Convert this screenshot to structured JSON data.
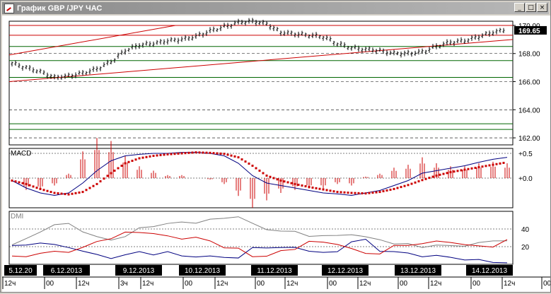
{
  "window": {
    "title": "График GBP /JPY ЧАС",
    "buttons": {
      "minimize": "_",
      "maximize": "□",
      "close": "×"
    }
  },
  "price_panel": {
    "y_ticks": [
      "170.00",
      "168.00",
      "166.00",
      "164.00",
      "162.00"
    ],
    "current_price": "169.65"
  },
  "macd_panel": {
    "label": "MACD",
    "y_ticks": [
      "+0.5",
      "+0.0"
    ]
  },
  "dmi_panel": {
    "label": "DMI",
    "y_ticks": [
      "40",
      "20"
    ]
  },
  "date_labels": [
    "5.12.20",
    "6.12.2013",
    "9.12.2013",
    "10.12.2013",
    "11.12.2013",
    "12.12.2013",
    "13.12.2013",
    "14.12.2013"
  ],
  "time_labels": [
    "12ч",
    "00",
    "12ч",
    "3ч",
    "12ч",
    "00",
    "12ч",
    "00",
    "12ч",
    "00",
    "12ч",
    "00",
    "12ч",
    "00",
    "12ч",
    "00"
  ],
  "colors": {
    "price_bar": "#000000",
    "trend_line": "#cc0000",
    "support_line": "#006600",
    "macd_line": "#000080",
    "macd_signal": "#cc0000",
    "dmi_adx": "#808080",
    "dmi_plus": "#000080",
    "dmi_minus": "#cc0000",
    "date_label_bg": "#000000"
  },
  "chart_data": [
    {
      "type": "line",
      "title": "График GBP /JPY ЧАС",
      "ylim": [
        161.5,
        170.3
      ],
      "x": [
        0,
        4,
        8,
        12,
        16,
        20,
        24,
        28,
        32,
        36,
        40,
        44,
        48,
        52,
        56,
        60,
        64,
        68,
        72,
        76,
        80,
        84,
        88,
        92,
        96,
        100,
        104,
        108,
        112,
        116,
        120,
        124,
        128,
        132,
        136,
        140
      ],
      "series": [
        {
          "values": [
            167.3,
            167.0,
            166.7,
            166.3,
            166.4,
            166.6,
            166.9,
            167.4,
            168.2,
            168.6,
            168.7,
            168.9,
            169.0,
            169.2,
            169.6,
            169.9,
            170.2,
            170.3,
            170.1,
            169.5,
            169.4,
            169.3,
            169.2,
            168.7,
            168.4,
            168.3,
            168.2,
            168.0,
            168.0,
            168.1,
            168.5,
            168.8,
            168.9,
            169.2,
            169.5,
            169.7
          ]
        }
      ]
    },
    {
      "type": "line",
      "title": "MACD",
      "ylim": [
        -0.6,
        0.6
      ],
      "x": [
        0,
        4,
        8,
        12,
        16,
        20,
        24,
        28,
        32,
        36,
        40,
        44,
        48,
        52,
        56,
        60,
        64,
        68,
        72,
        76,
        80,
        84,
        88,
        92,
        96,
        100,
        104,
        108,
        112,
        116,
        120,
        124,
        128,
        132,
        136,
        140
      ],
      "series": [
        {
          "values": [
            -0.05,
            -0.2,
            -0.3,
            -0.35,
            -0.3,
            -0.1,
            0.15,
            0.35,
            0.45,
            0.48,
            0.5,
            0.5,
            0.52,
            0.52,
            0.5,
            0.45,
            0.3,
            0.05,
            -0.1,
            -0.15,
            -0.2,
            -0.25,
            -0.3,
            -0.32,
            -0.35,
            -0.3,
            -0.25,
            -0.15,
            -0.05,
            0.1,
            0.15,
            0.2,
            0.25,
            0.32,
            0.38,
            0.42
          ]
        },
        {
          "values": [
            -0.05,
            -0.12,
            -0.22,
            -0.3,
            -0.33,
            -0.28,
            -0.12,
            0.1,
            0.3,
            0.4,
            0.45,
            0.48,
            0.5,
            0.52,
            0.51,
            0.49,
            0.42,
            0.25,
            0.05,
            -0.05,
            -0.12,
            -0.18,
            -0.23,
            -0.28,
            -0.3,
            -0.31,
            -0.28,
            -0.22,
            -0.14,
            -0.04,
            0.05,
            0.12,
            0.17,
            0.22,
            0.27,
            0.32
          ]
        }
      ]
    },
    {
      "type": "line",
      "title": "DMI",
      "ylim": [
        0,
        60
      ],
      "x": [
        0,
        4,
        8,
        12,
        16,
        20,
        24,
        28,
        32,
        36,
        40,
        44,
        48,
        52,
        56,
        60,
        64,
        68,
        72,
        76,
        80,
        84,
        88,
        92,
        96,
        100,
        104,
        108,
        112,
        116,
        120,
        124,
        128,
        132,
        136,
        140
      ],
      "series": [
        {
          "values": [
            22,
            28,
            38,
            44,
            46,
            38,
            30,
            28,
            32,
            40,
            44,
            46,
            47,
            48,
            50,
            52,
            55,
            45,
            40,
            38,
            36,
            33,
            32,
            32,
            35,
            30,
            28,
            24,
            22,
            20,
            22,
            20,
            22,
            24,
            26,
            28
          ]
        },
        {
          "values": [
            20,
            22,
            25,
            21,
            20,
            15,
            10,
            8,
            10,
            14,
            12,
            13,
            10,
            9,
            8,
            9,
            7,
            18,
            20,
            18,
            19,
            16,
            12,
            15,
            26,
            27,
            16,
            14,
            12,
            10,
            9,
            8,
            6,
            4,
            3,
            2
          ]
        },
        {
          "values": [
            8,
            10,
            12,
            14,
            15,
            18,
            26,
            30,
            35,
            37,
            35,
            31,
            30,
            30,
            26,
            20,
            17,
            9,
            10,
            14,
            18,
            26,
            24,
            24,
            17,
            12,
            13,
            20,
            22,
            24,
            25,
            26,
            22,
            20,
            21,
            27
          ]
        }
      ]
    }
  ]
}
